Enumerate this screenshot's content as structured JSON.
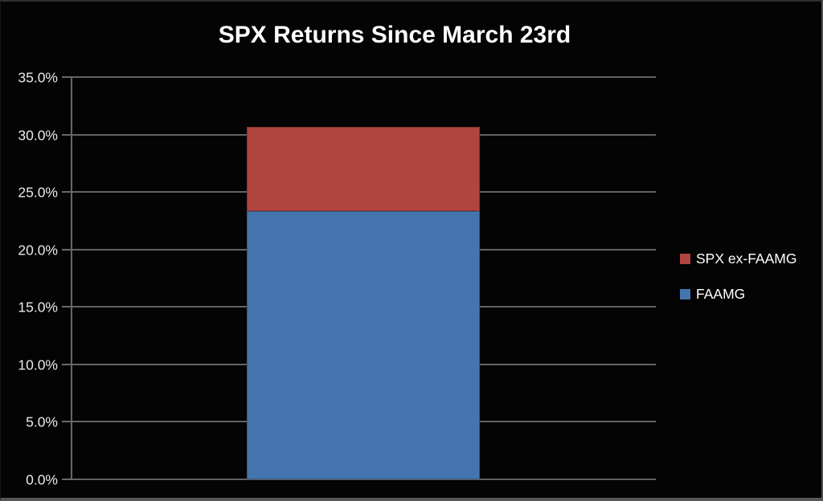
{
  "window": {
    "background": "#000000",
    "border_color": "#555555"
  },
  "chart_data": {
    "type": "bar",
    "stacked": true,
    "title": "SPX Returns Since March 23rd",
    "categories": [
      ""
    ],
    "series": [
      {
        "name": "FAAMG",
        "values": [
          23.3
        ],
        "color": "#4575AE"
      },
      {
        "name": "SPX ex-FAAMG",
        "values": [
          7.4
        ],
        "color": "#B14440"
      }
    ],
    "total": 30.7,
    "ylim": [
      0,
      35
    ],
    "yticks": [
      {
        "value": 0,
        "label": "0.0%"
      },
      {
        "value": 5,
        "label": "5.0%"
      },
      {
        "value": 10,
        "label": "10.0%"
      },
      {
        "value": 15,
        "label": "15.0%"
      },
      {
        "value": 20,
        "label": "20.0%"
      },
      {
        "value": 25,
        "label": "25.0%"
      },
      {
        "value": 30,
        "label": "30.0%"
      },
      {
        "value": 35,
        "label": "35.0%"
      }
    ],
    "xlabel": "",
    "ylabel": "",
    "grid": true,
    "legend_position": "right",
    "legend": [
      "SPX ex-FAAMG",
      "FAAMG"
    ],
    "colors": {
      "background": "#000000",
      "title_text": "#FFFFFF",
      "tick_text": "#E9E9E9",
      "gridline": "#636363",
      "legend_text": "#FFFFFF"
    }
  }
}
